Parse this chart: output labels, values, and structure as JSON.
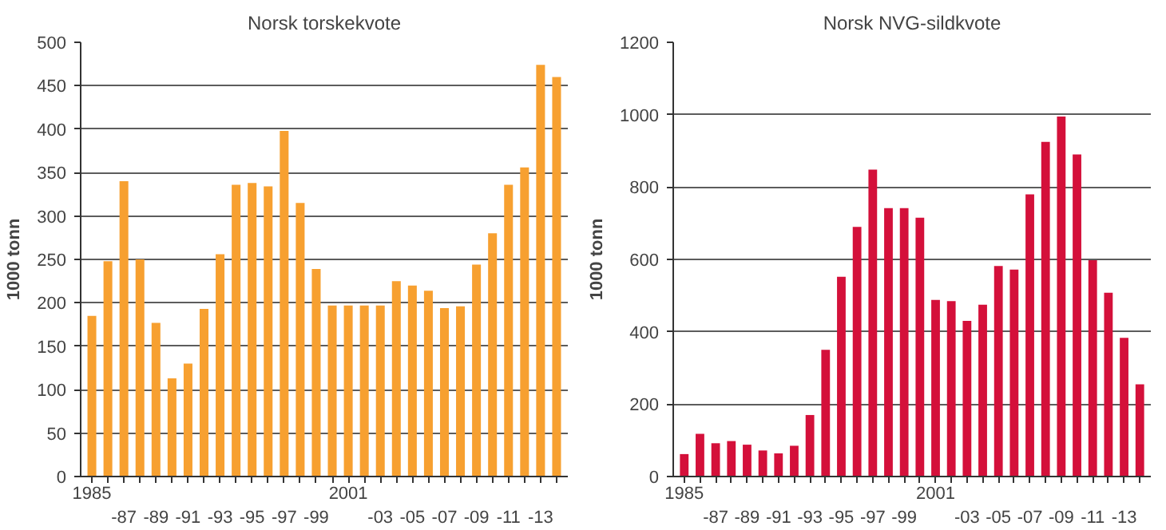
{
  "chart_data": [
    {
      "type": "bar",
      "title": "Norsk torskekvote",
      "ylabel": "1000 tonn",
      "categories": [
        "1985",
        null,
        "-87",
        null,
        "-89",
        null,
        "-91",
        null,
        "-93",
        null,
        "-95",
        null,
        "-97",
        null,
        "-99",
        null,
        "2001",
        null,
        "-03",
        null,
        "-05",
        null,
        "-07",
        null,
        "-09",
        null,
        "-11",
        null,
        "-13",
        null
      ],
      "values": [
        185,
        248,
        340,
        250,
        177,
        113,
        130,
        193,
        256,
        336,
        338,
        334,
        398,
        315,
        239,
        197,
        197,
        197,
        197,
        225,
        220,
        214,
        194,
        196,
        244,
        280,
        336,
        356,
        474,
        460
      ],
      "color": "#f7a030",
      "ylim": [
        0,
        500
      ],
      "yticks": [
        0,
        50,
        100,
        150,
        200,
        250,
        300,
        350,
        400,
        450,
        500
      ],
      "grid": "y"
    },
    {
      "type": "bar",
      "title": "Norsk NVG-sildkvote",
      "ylabel": "1000 tonn",
      "categories": [
        "1985",
        null,
        "-87",
        null,
        "-89",
        null,
        "-91",
        null,
        "-93",
        null,
        "-95",
        null,
        "-97",
        null,
        "-99",
        null,
        "2001",
        null,
        "-03",
        null,
        "-05",
        null,
        "-07",
        null,
        "-09",
        null,
        "-11",
        null,
        "-13",
        null
      ],
      "values": [
        62,
        118,
        92,
        98,
        88,
        72,
        64,
        85,
        170,
        350,
        552,
        690,
        848,
        742,
        742,
        715,
        488,
        485,
        430,
        475,
        582,
        572,
        780,
        925,
        995,
        890,
        598,
        508,
        383,
        255
      ],
      "color": "#d4103a",
      "ylim": [
        0,
        1200
      ],
      "yticks": [
        0,
        200,
        400,
        600,
        800,
        1000,
        1200
      ],
      "grid": "y"
    }
  ]
}
